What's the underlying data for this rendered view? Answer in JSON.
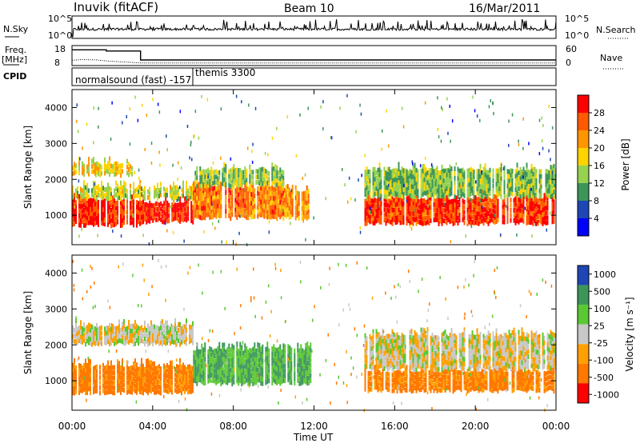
{
  "header": {
    "station": "Inuvik (fitACF)",
    "beam": "Beam 10",
    "date": "16/Mar/2011"
  },
  "summary_panels": {
    "nsky_label": "N.Sky",
    "nsearch_label": "N.Search",
    "count_ticks": [
      "10^5",
      "10^0"
    ],
    "freq_label": "Freq.",
    "freq_unit": "[MHz]",
    "freq_ticks": [
      "18",
      "8"
    ],
    "nave_label": "Nave",
    "nave_ticks": [
      "60",
      "0"
    ],
    "cpid_label": "CPID",
    "cpid_segments": [
      {
        "label": "normalsound (fast) -157",
        "start_hour": 0,
        "end_hour": 6
      },
      {
        "label": "themis 3300",
        "start_hour": 6,
        "end_hour": 24
      }
    ],
    "freq_series": [
      [
        0,
        15.9
      ],
      [
        1.7,
        15.9
      ],
      [
        1.7,
        15.3
      ],
      [
        3.4,
        15.3
      ],
      [
        3.4,
        10.8
      ],
      [
        24,
        10.8
      ]
    ],
    "nave_series": [
      [
        0,
        16
      ],
      [
        0.5,
        18
      ],
      [
        1.2,
        17
      ],
      [
        1.7,
        14
      ],
      [
        3.4,
        8
      ],
      [
        24,
        8
      ]
    ]
  },
  "legends": {
    "power": {
      "label": "Power [dB]",
      "ticks": [
        "28",
        "24",
        "20",
        "16",
        "12",
        "8",
        "4"
      ],
      "colors": [
        "#ff0000",
        "#ff5a00",
        "#ff9600",
        "#ffd300",
        "#96d250",
        "#3c965a",
        "#1e46b4",
        "#0000ff"
      ]
    },
    "velocity": {
      "label": "Velocity [m s⁻¹]",
      "ticks": [
        "1000",
        "500",
        "100",
        "25",
        "-25",
        "-100",
        "-500",
        "-1000"
      ],
      "colors": [
        "#1e46b4",
        "#3c965a",
        "#5ac832",
        "#c8c8c8",
        "#ffa000",
        "#ff7800",
        "#ff0000"
      ]
    }
  },
  "chart_data": [
    {
      "type": "heatmap",
      "title": "Power",
      "ylabel": "Slant Range [km]",
      "xlabel": "Time UT",
      "xlim": [
        "00:00",
        "24:00"
      ],
      "ylim": [
        180,
        4500
      ],
      "yticks": [
        "1000",
        "2000",
        "3000",
        "4000"
      ],
      "xticks": [
        "00:00",
        "04:00",
        "08:00",
        "12:00",
        "16:00",
        "20:00",
        "00:00"
      ],
      "color_scale_db": [
        0,
        30
      ],
      "bands": [
        {
          "start_hour": 0.0,
          "end_hour": 3.5,
          "range_min": 700,
          "range_max": 1450,
          "value": 27,
          "label": "strong"
        },
        {
          "start_hour": 3.5,
          "end_hour": 6.0,
          "range_min": 800,
          "range_max": 1350,
          "value": 28,
          "label": "strong"
        },
        {
          "start_hour": 0.0,
          "end_hour": 6.0,
          "range_min": 1450,
          "range_max": 1800,
          "value": 14,
          "label": "moderate"
        },
        {
          "start_hour": 0.0,
          "end_hour": 3.0,
          "range_min": 2100,
          "range_max": 2450,
          "value": 16,
          "label": "moderate"
        },
        {
          "start_hour": 6.0,
          "end_hour": 10.5,
          "range_min": 900,
          "range_max": 1800,
          "value": 22,
          "label": "strong"
        },
        {
          "start_hour": 6.0,
          "end_hour": 10.5,
          "range_min": 1800,
          "range_max": 2300,
          "value": 12,
          "label": "weak"
        },
        {
          "start_hour": 10.5,
          "end_hour": 11.8,
          "range_min": 900,
          "range_max": 1700,
          "value": 20,
          "label": "strong"
        },
        {
          "start_hour": 14.5,
          "end_hour": 24.0,
          "range_min": 750,
          "range_max": 1500,
          "value": 26,
          "label": "strong"
        },
        {
          "start_hour": 14.5,
          "end_hour": 24.0,
          "range_min": 1500,
          "range_max": 2300,
          "value": 11,
          "label": "weak"
        }
      ]
    },
    {
      "type": "heatmap",
      "title": "Velocity",
      "ylabel": "Slant Range [km]",
      "xlabel": "Time UT",
      "xlim": [
        "00:00",
        "24:00"
      ],
      "ylim": [
        180,
        4500
      ],
      "yticks": [
        "1000",
        "2000",
        "3000",
        "4000"
      ],
      "xticks": [
        "00:00",
        "04:00",
        "08:00",
        "12:00",
        "16:00",
        "20:00",
        "00:00"
      ],
      "bands": [
        {
          "start_hour": 0.0,
          "end_hour": 6.0,
          "range_min": 650,
          "range_max": 1450,
          "value": -150,
          "label": "negative"
        },
        {
          "start_hour": 0.0,
          "end_hour": 6.0,
          "range_min": 2000,
          "range_max": 2550,
          "value": 0,
          "label": "near-zero"
        },
        {
          "start_hour": 6.0,
          "end_hour": 11.8,
          "range_min": 900,
          "range_max": 1900,
          "value": 300,
          "label": "positive"
        },
        {
          "start_hour": 14.5,
          "end_hour": 24.0,
          "range_min": 700,
          "range_max": 1300,
          "value": -150,
          "label": "negative"
        },
        {
          "start_hour": 14.5,
          "end_hour": 24.0,
          "range_min": 1300,
          "range_max": 2300,
          "value": 0,
          "label": "near-zero"
        }
      ]
    }
  ]
}
